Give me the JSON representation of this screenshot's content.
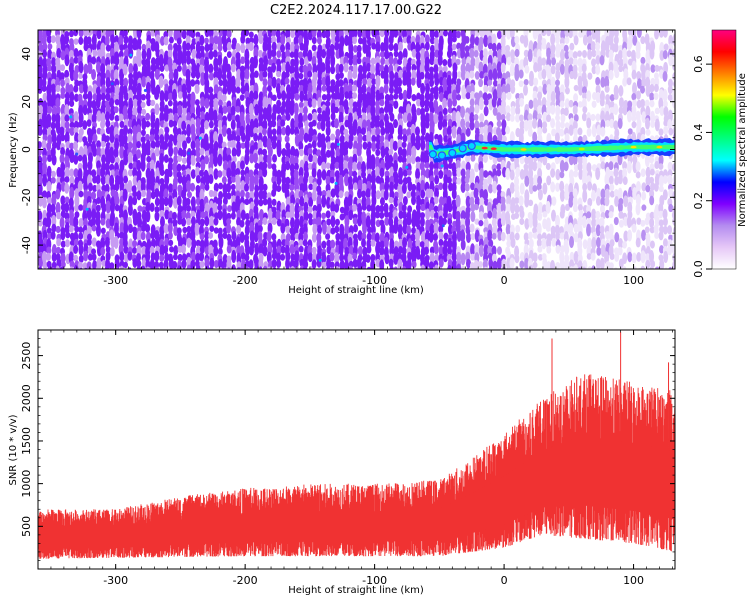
{
  "chart_data": [
    {
      "type": "heatmap",
      "title": "C2E2.2024.117.17.00.G22",
      "xlabel": "Height of straight line (km)",
      "ylabel": "Frequency (Hz)",
      "xlim": [
        -360,
        132
      ],
      "ylim": [
        -50,
        50
      ],
      "xticks": [
        -300,
        -200,
        -100,
        0,
        100
      ],
      "yticks": [
        -40,
        -20,
        0,
        20,
        40
      ],
      "colorbar": {
        "label": "Normalized spectral amplitude",
        "range": [
          0,
          0.7
        ],
        "ticks": [
          0.0,
          0.2,
          0.4,
          0.6
        ],
        "colors": [
          "#ffffff",
          "#e6c8f7",
          "#b48cf0",
          "#7f00ff",
          "#0000ff",
          "#00ffff",
          "#00ff80",
          "#00ff00",
          "#ffff00",
          "#ff8000",
          "#ff0000",
          "#ff0080"
        ]
      },
      "signal": {
        "frequency_hz": 0,
        "x_start": -58,
        "x_end": 132,
        "description_points": [
          {
            "x": -55,
            "y": -2
          },
          {
            "x": -40,
            "y": -1
          },
          {
            "x": -25,
            "y": 1
          },
          {
            "x": 0,
            "y": 0
          },
          {
            "x": 50,
            "y": 0
          },
          {
            "x": 100,
            "y": 1
          },
          {
            "x": 132,
            "y": 1
          }
        ]
      },
      "noise_regions": [
        {
          "x_range": [
            -360,
            -40
          ],
          "level": "high"
        },
        {
          "x_range": [
            -40,
            0
          ],
          "level": "medium"
        },
        {
          "x_range": [
            0,
            132
          ],
          "level": "low"
        }
      ]
    },
    {
      "type": "area",
      "xlabel": "Height of straight line (km)",
      "ylabel": "SNR (10 * v/v)",
      "xlim": [
        -360,
        132
      ],
      "ylim": [
        0,
        2800
      ],
      "xticks": [
        -300,
        -200,
        -100,
        0,
        100
      ],
      "yticks": [
        500,
        1000,
        1500,
        2000,
        2500
      ],
      "color": "#f03232",
      "envelope_max": [
        {
          "x": -360,
          "y": 700
        },
        {
          "x": -300,
          "y": 700
        },
        {
          "x": -250,
          "y": 850
        },
        {
          "x": -200,
          "y": 950
        },
        {
          "x": -150,
          "y": 1000
        },
        {
          "x": -100,
          "y": 1000
        },
        {
          "x": -50,
          "y": 1050
        },
        {
          "x": -30,
          "y": 1250
        },
        {
          "x": 0,
          "y": 1600
        },
        {
          "x": 30,
          "y": 2000
        },
        {
          "x": 60,
          "y": 2300
        },
        {
          "x": 100,
          "y": 2200
        },
        {
          "x": 132,
          "y": 2100
        }
      ],
      "envelope_min": [
        {
          "x": -360,
          "y": 120
        },
        {
          "x": -200,
          "y": 150
        },
        {
          "x": -50,
          "y": 150
        },
        {
          "x": 0,
          "y": 250
        },
        {
          "x": 30,
          "y": 400
        },
        {
          "x": 100,
          "y": 300
        },
        {
          "x": 132,
          "y": 200
        }
      ],
      "peaks": [
        {
          "x": 37,
          "y": 2700
        },
        {
          "x": 90,
          "y": 2780
        },
        {
          "x": 127,
          "y": 2420
        }
      ]
    }
  ]
}
